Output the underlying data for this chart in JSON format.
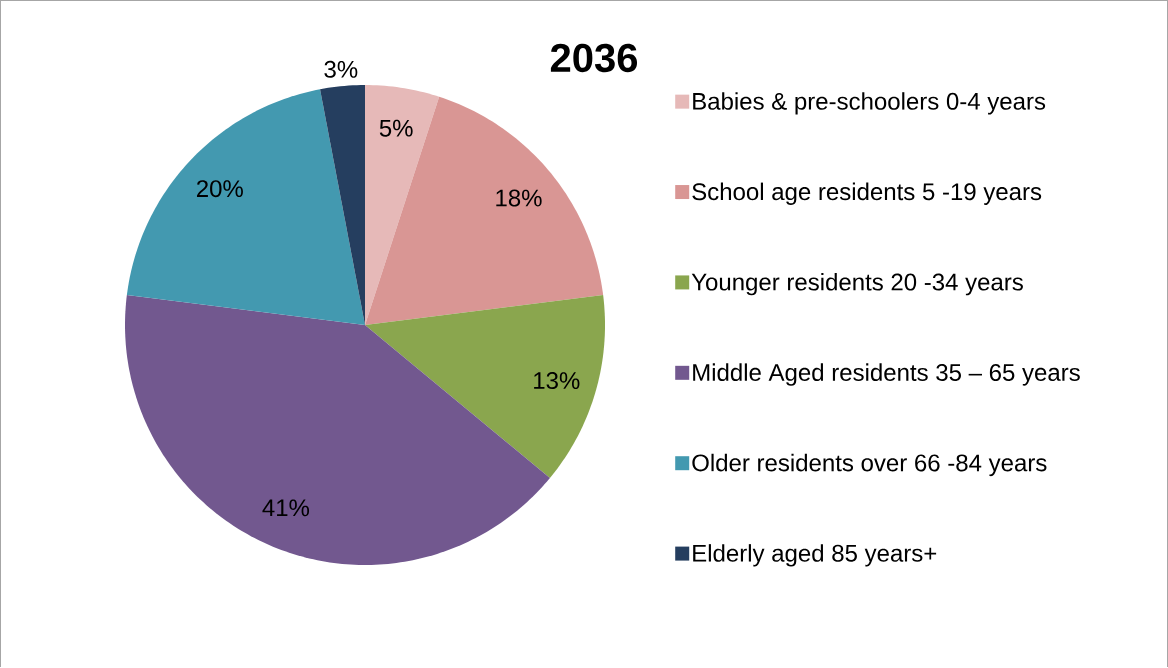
{
  "chart_data": {
    "type": "pie",
    "title": "2036",
    "categories": [
      "Babies & pre-schoolers 0-4 years",
      "School age residents 5 -19 years",
      "Younger residents 20 -34 years",
      "Middle Aged residents 35 – 65 years",
      "Older residents over 66 -84 years",
      "Elderly aged 85 years+"
    ],
    "values": [
      5,
      18,
      13,
      41,
      20,
      3
    ],
    "colors": [
      "#e6b9b8",
      "#d99694",
      "#8aa64e",
      "#72588f",
      "#4399b0",
      "#253e5f"
    ],
    "value_labels": [
      "5%",
      "18%",
      "13%",
      "41%",
      "20%",
      "3%"
    ],
    "legend": "right"
  }
}
